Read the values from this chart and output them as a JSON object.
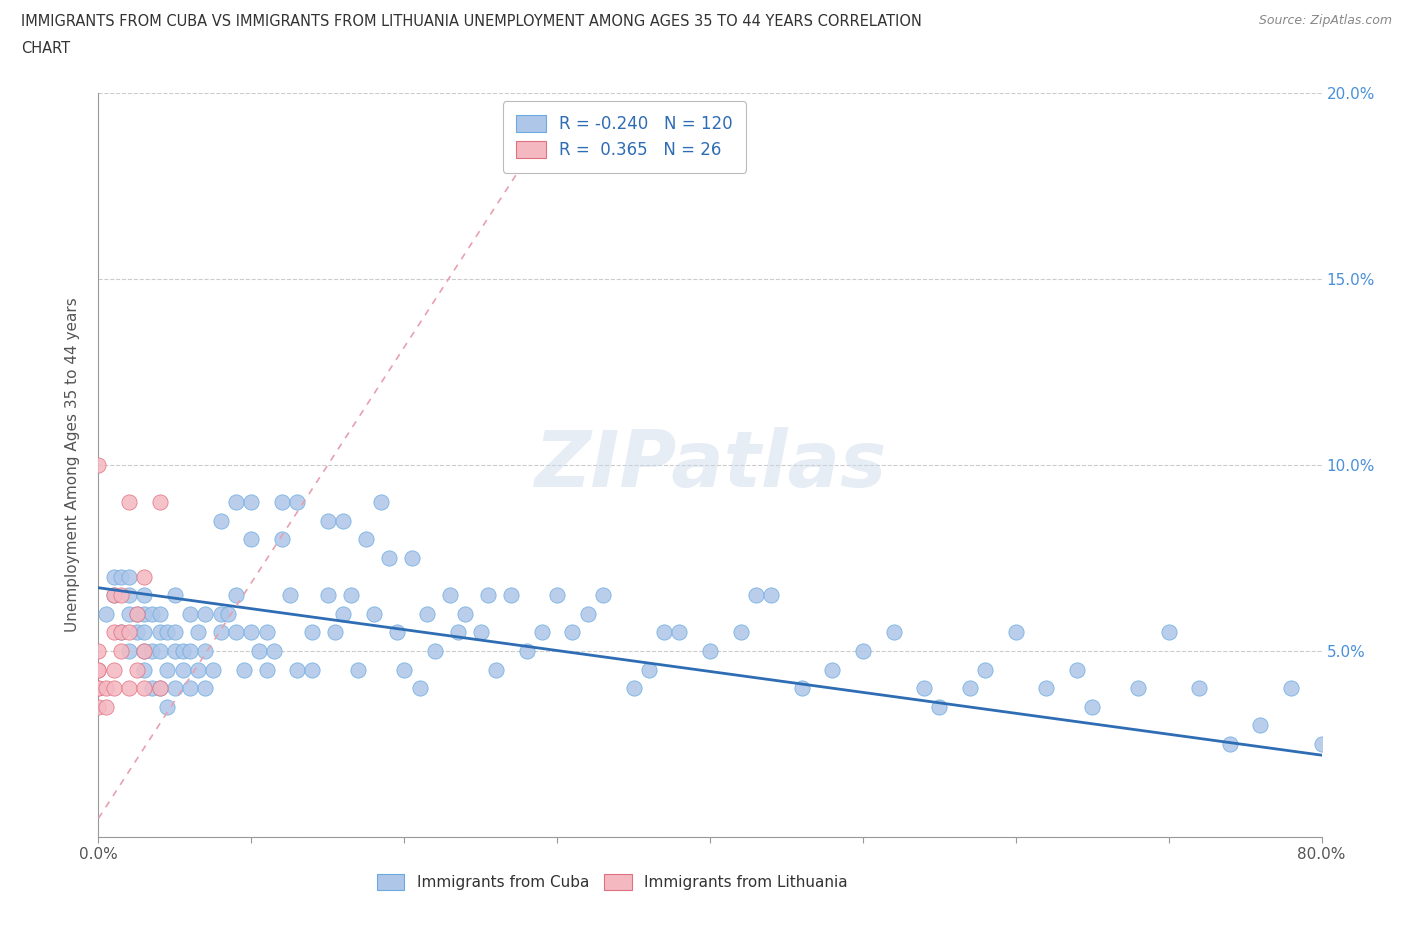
{
  "title_line1": "IMMIGRANTS FROM CUBA VS IMMIGRANTS FROM LITHUANIA UNEMPLOYMENT AMONG AGES 35 TO 44 YEARS CORRELATION",
  "title_line2": "CHART",
  "source": "Source: ZipAtlas.com",
  "ylabel": "Unemployment Among Ages 35 to 44 years",
  "xlim": [
    0.0,
    0.8
  ],
  "ylim": [
    0.0,
    0.2
  ],
  "xticks": [
    0.0,
    0.1,
    0.2,
    0.3,
    0.4,
    0.5,
    0.6,
    0.7,
    0.8
  ],
  "xticklabels": [
    "0.0%",
    "",
    "",
    "",
    "",
    "",
    "",
    "",
    "80.0%"
  ],
  "yticks": [
    0.0,
    0.05,
    0.1,
    0.15,
    0.2
  ],
  "yticklabels": [
    "",
    "5.0%",
    "10.0%",
    "15.0%",
    "20.0%"
  ],
  "cuba_color": "#aec6e8",
  "cuba_edge": "#6aaae0",
  "lithuania_color": "#f4b8c1",
  "lithuania_edge": "#e07080",
  "cuba_R": -0.24,
  "cuba_N": 120,
  "lithuania_R": 0.365,
  "lithuania_N": 26,
  "trendline_cuba_color": "#2e6db4",
  "trendline_lith_color": "#e8a0b0",
  "watermark": "ZIPatlas",
  "legend_label_cuba": "Immigrants from Cuba",
  "legend_label_lithuania": "Immigrants from Lithuania",
  "cuba_x": [
    0.005,
    0.01,
    0.01,
    0.015,
    0.015,
    0.02,
    0.02,
    0.02,
    0.02,
    0.025,
    0.025,
    0.03,
    0.03,
    0.03,
    0.03,
    0.03,
    0.035,
    0.035,
    0.035,
    0.04,
    0.04,
    0.04,
    0.04,
    0.045,
    0.045,
    0.045,
    0.05,
    0.05,
    0.05,
    0.05,
    0.055,
    0.055,
    0.06,
    0.06,
    0.06,
    0.065,
    0.065,
    0.07,
    0.07,
    0.07,
    0.075,
    0.08,
    0.08,
    0.08,
    0.085,
    0.09,
    0.09,
    0.09,
    0.095,
    0.1,
    0.1,
    0.1,
    0.105,
    0.11,
    0.11,
    0.115,
    0.12,
    0.12,
    0.125,
    0.13,
    0.13,
    0.14,
    0.14,
    0.15,
    0.15,
    0.155,
    0.16,
    0.16,
    0.165,
    0.17,
    0.175,
    0.18,
    0.185,
    0.19,
    0.195,
    0.2,
    0.205,
    0.21,
    0.215,
    0.22,
    0.23,
    0.235,
    0.24,
    0.25,
    0.255,
    0.26,
    0.27,
    0.28,
    0.29,
    0.3,
    0.31,
    0.32,
    0.33,
    0.35,
    0.36,
    0.37,
    0.38,
    0.4,
    0.42,
    0.43,
    0.44,
    0.46,
    0.48,
    0.5,
    0.52,
    0.54,
    0.55,
    0.57,
    0.58,
    0.6,
    0.62,
    0.64,
    0.65,
    0.68,
    0.7,
    0.72,
    0.74,
    0.76,
    0.78,
    0.8
  ],
  "cuba_y": [
    0.06,
    0.065,
    0.07,
    0.055,
    0.07,
    0.05,
    0.06,
    0.065,
    0.07,
    0.055,
    0.06,
    0.045,
    0.05,
    0.055,
    0.06,
    0.065,
    0.04,
    0.05,
    0.06,
    0.04,
    0.05,
    0.055,
    0.06,
    0.035,
    0.045,
    0.055,
    0.04,
    0.05,
    0.055,
    0.065,
    0.045,
    0.05,
    0.04,
    0.05,
    0.06,
    0.045,
    0.055,
    0.04,
    0.05,
    0.06,
    0.045,
    0.085,
    0.055,
    0.06,
    0.06,
    0.065,
    0.055,
    0.09,
    0.045,
    0.08,
    0.055,
    0.09,
    0.05,
    0.055,
    0.045,
    0.05,
    0.08,
    0.09,
    0.065,
    0.045,
    0.09,
    0.055,
    0.045,
    0.085,
    0.065,
    0.055,
    0.06,
    0.085,
    0.065,
    0.045,
    0.08,
    0.06,
    0.09,
    0.075,
    0.055,
    0.045,
    0.075,
    0.04,
    0.06,
    0.05,
    0.065,
    0.055,
    0.06,
    0.055,
    0.065,
    0.045,
    0.065,
    0.05,
    0.055,
    0.065,
    0.055,
    0.06,
    0.065,
    0.04,
    0.045,
    0.055,
    0.055,
    0.05,
    0.055,
    0.065,
    0.065,
    0.04,
    0.045,
    0.05,
    0.055,
    0.04,
    0.035,
    0.04,
    0.045,
    0.055,
    0.04,
    0.045,
    0.035,
    0.04,
    0.055,
    0.04,
    0.025,
    0.03,
    0.04,
    0.025
  ],
  "lithuania_x": [
    0.0,
    0.0,
    0.0,
    0.0,
    0.0,
    0.0,
    0.0,
    0.005,
    0.005,
    0.01,
    0.01,
    0.01,
    0.01,
    0.015,
    0.015,
    0.015,
    0.02,
    0.02,
    0.02,
    0.025,
    0.025,
    0.03,
    0.03,
    0.03,
    0.04,
    0.04
  ],
  "lithuania_y": [
    0.035,
    0.04,
    0.04,
    0.045,
    0.045,
    0.05,
    0.1,
    0.035,
    0.04,
    0.04,
    0.045,
    0.055,
    0.065,
    0.05,
    0.055,
    0.065,
    0.04,
    0.055,
    0.09,
    0.045,
    0.06,
    0.04,
    0.05,
    0.07,
    0.04,
    0.09
  ],
  "cuba_trend_x0": 0.0,
  "cuba_trend_x1": 0.8,
  "cuba_trend_y0": 0.067,
  "cuba_trend_y1": 0.022,
  "lith_trend_x0": 0.0,
  "lith_trend_x1": 0.3,
  "lith_trend_y0": 0.005,
  "lith_trend_y1": 0.195
}
